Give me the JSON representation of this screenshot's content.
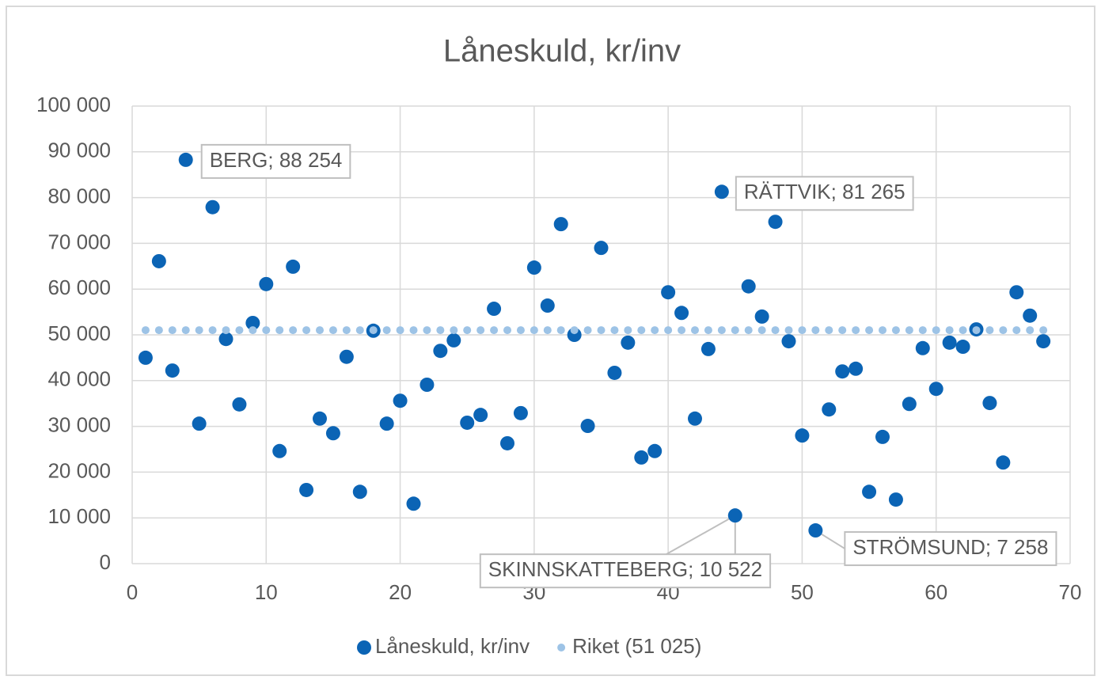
{
  "chart_data": {
    "type": "scatter",
    "title": "Låneskuld, kr/inv",
    "xlim": [
      0,
      70
    ],
    "xticks": [
      0,
      10,
      20,
      30,
      40,
      50,
      60,
      70
    ],
    "ylim": [
      0,
      100000
    ],
    "yticks": [
      {
        "value": 0,
        "label": "0"
      },
      {
        "value": 10000,
        "label": "10 000"
      },
      {
        "value": 20000,
        "label": "20 000"
      },
      {
        "value": 30000,
        "label": "30 000"
      },
      {
        "value": 40000,
        "label": "40 000"
      },
      {
        "value": 50000,
        "label": "50 000"
      },
      {
        "value": 60000,
        "label": "60 000"
      },
      {
        "value": 70000,
        "label": "70 000"
      },
      {
        "value": 80000,
        "label": "80 000"
      },
      {
        "value": 90000,
        "label": "90 000"
      },
      {
        "value": 100000,
        "label": "100 000"
      }
    ],
    "grid": true,
    "legend": "bottom",
    "series": [
      {
        "name": "Låneskuld, kr/inv",
        "color": "#0b64b5",
        "x": [
          1,
          2,
          3,
          4,
          5,
          6,
          7,
          8,
          9,
          10,
          11,
          12,
          13,
          14,
          15,
          16,
          17,
          18,
          19,
          20,
          21,
          22,
          23,
          24,
          25,
          26,
          27,
          28,
          29,
          30,
          31,
          32,
          33,
          34,
          35,
          36,
          37,
          38,
          39,
          40,
          41,
          42,
          43,
          44,
          45,
          46,
          47,
          48,
          49,
          50,
          51,
          52,
          53,
          54,
          55,
          56,
          57,
          58,
          59,
          60,
          61,
          62,
          63,
          64,
          65,
          66,
          67,
          68
        ],
        "values": [
          45000,
          66100,
          42200,
          88254,
          30600,
          77900,
          49100,
          34800,
          52600,
          61100,
          24600,
          64900,
          16100,
          31700,
          28500,
          45200,
          15700,
          50900,
          30600,
          35600,
          13100,
          39100,
          46500,
          48800,
          30800,
          32500,
          55700,
          26300,
          32900,
          64700,
          56400,
          74200,
          50000,
          30100,
          69000,
          41700,
          48300,
          23200,
          24600,
          59300,
          54800,
          31700,
          46900,
          81265,
          10522,
          60600,
          54000,
          74700,
          48600,
          28000,
          7258,
          33700,
          42000,
          42600,
          15700,
          27700,
          14000,
          34900,
          47100,
          38200,
          48300,
          47400,
          51200,
          35100,
          22100,
          59300,
          54200,
          48600
        ],
        "value_labels": [
          null,
          null,
          null,
          "BERG; 88 254",
          null,
          null,
          null,
          null,
          null,
          null,
          null,
          null,
          null,
          null,
          null,
          null,
          null,
          null,
          null,
          null,
          null,
          null,
          null,
          null,
          null,
          null,
          null,
          null,
          null,
          null,
          null,
          null,
          null,
          null,
          null,
          null,
          null,
          null,
          null,
          null,
          null,
          null,
          null,
          "RÄTTVIK; 81 265",
          "SKINNSKATTEBERG; 10 522",
          null,
          null,
          null,
          null,
          null,
          "STRÖMSUND; 7 258",
          null,
          null,
          null,
          null,
          null,
          null,
          null,
          null,
          null,
          null,
          null,
          null,
          null,
          null,
          null,
          null,
          null
        ]
      },
      {
        "name": "Riket (51 025)",
        "color": "#9dc3e6",
        "x": [
          1,
          2,
          3,
          4,
          5,
          6,
          7,
          8,
          9,
          10,
          11,
          12,
          13,
          14,
          15,
          16,
          17,
          18,
          19,
          20,
          21,
          22,
          23,
          24,
          25,
          26,
          27,
          28,
          29,
          30,
          31,
          32,
          33,
          34,
          35,
          36,
          37,
          38,
          39,
          40,
          41,
          42,
          43,
          44,
          45,
          46,
          47,
          48,
          49,
          50,
          51,
          52,
          53,
          54,
          55,
          56,
          57,
          58,
          59,
          60,
          61,
          62,
          63,
          64,
          65,
          66,
          67,
          68
        ],
        "values": [
          51025,
          51025,
          51025,
          51025,
          51025,
          51025,
          51025,
          51025,
          51025,
          51025,
          51025,
          51025,
          51025,
          51025,
          51025,
          51025,
          51025,
          51025,
          51025,
          51025,
          51025,
          51025,
          51025,
          51025,
          51025,
          51025,
          51025,
          51025,
          51025,
          51025,
          51025,
          51025,
          51025,
          51025,
          51025,
          51025,
          51025,
          51025,
          51025,
          51025,
          51025,
          51025,
          51025,
          51025,
          51025,
          51025,
          51025,
          51025,
          51025,
          51025,
          51025,
          51025,
          51025,
          51025,
          51025,
          51025,
          51025,
          51025,
          51025,
          51025,
          51025,
          51025,
          51025,
          51025,
          51025,
          51025,
          51025,
          51025
        ]
      }
    ]
  }
}
